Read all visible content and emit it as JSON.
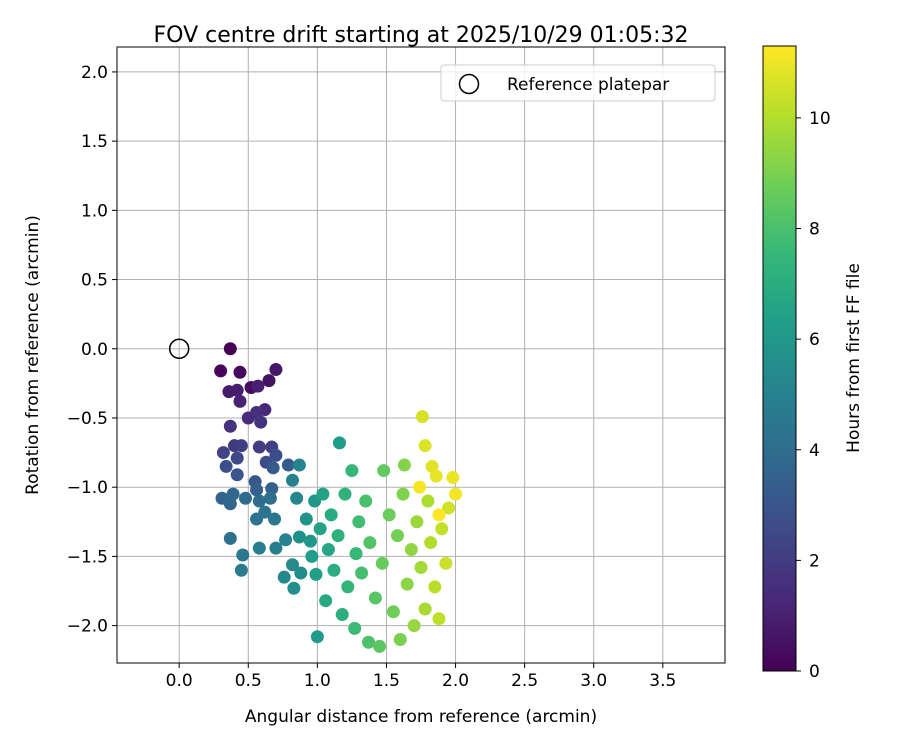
{
  "chart_data": {
    "type": "scatter",
    "title": "FOV centre drift starting at 2025/10/29 01:05:32",
    "xlabel": "Angular distance from reference (arcmin)",
    "ylabel": "Rotation from reference (arcmin)",
    "xlim": [
      -0.45,
      3.95
    ],
    "ylim": [
      -2.27,
      2.18
    ],
    "xticks": [
      0.0,
      0.5,
      1.0,
      1.5,
      2.0,
      2.5,
      3.0,
      3.5
    ],
    "xtick_labels": [
      "0.0",
      "0.5",
      "1.0",
      "1.5",
      "2.0",
      "2.5",
      "3.0",
      "3.5"
    ],
    "yticks": [
      2.0,
      1.5,
      1.0,
      0.5,
      0.0,
      -0.5,
      -1.0,
      -1.5,
      -2.0
    ],
    "ytick_labels": [
      "2.0",
      "1.5",
      "1.0",
      "0.5",
      "0.0",
      "−0.5",
      "−1.0",
      "−1.5",
      "−2.0"
    ],
    "grid": true,
    "legend": {
      "placement": "top-right",
      "entries": [
        "Reference platepar"
      ]
    },
    "reference_point": {
      "name": "Reference platepar",
      "x": 0.0,
      "y": 0.0
    },
    "colorbar": {
      "label": "Hours from first FF file",
      "range": [
        0,
        11.3
      ],
      "ticks": [
        0,
        2,
        4,
        6,
        8,
        10
      ],
      "tick_labels": [
        "0",
        "2",
        "4",
        "6",
        "8",
        "10"
      ],
      "colormap": [
        "#440154",
        "#482878",
        "#3e4989",
        "#31688e",
        "#26828e",
        "#1f9e89",
        "#35b779",
        "#6ece58",
        "#b5de2b",
        "#fde725"
      ]
    },
    "points": [
      {
        "x": 0.37,
        "y": 0.0,
        "t": 0.0
      },
      {
        "x": 0.3,
        "y": -0.16,
        "t": 0.2
      },
      {
        "x": 0.44,
        "y": -0.17,
        "t": 0.3
      },
      {
        "x": 0.52,
        "y": -0.28,
        "t": 0.4
      },
      {
        "x": 0.65,
        "y": -0.23,
        "t": 0.5
      },
      {
        "x": 0.7,
        "y": -0.15,
        "t": 0.7
      },
      {
        "x": 0.36,
        "y": -0.31,
        "t": 0.8
      },
      {
        "x": 0.42,
        "y": -0.3,
        "t": 0.9
      },
      {
        "x": 0.57,
        "y": -0.27,
        "t": 1.0
      },
      {
        "x": 0.44,
        "y": -0.38,
        "t": 1.1
      },
      {
        "x": 0.62,
        "y": -0.44,
        "t": 1.3
      },
      {
        "x": 0.5,
        "y": -0.5,
        "t": 1.4
      },
      {
        "x": 0.56,
        "y": -0.46,
        "t": 1.5
      },
      {
        "x": 0.37,
        "y": -0.56,
        "t": 1.6
      },
      {
        "x": 0.59,
        "y": -0.53,
        "t": 1.7
      },
      {
        "x": 0.4,
        "y": -0.7,
        "t": 1.9
      },
      {
        "x": 0.58,
        "y": -0.71,
        "t": 2.0
      },
      {
        "x": 0.45,
        "y": -0.7,
        "t": 2.1
      },
      {
        "x": 0.67,
        "y": -0.71,
        "t": 2.2
      },
      {
        "x": 0.32,
        "y": -0.75,
        "t": 2.3
      },
      {
        "x": 0.42,
        "y": -0.79,
        "t": 2.5
      },
      {
        "x": 0.63,
        "y": -0.82,
        "t": 2.6
      },
      {
        "x": 0.7,
        "y": -0.77,
        "t": 2.7
      },
      {
        "x": 0.34,
        "y": -0.85,
        "t": 2.8
      },
      {
        "x": 0.42,
        "y": -0.91,
        "t": 3.0
      },
      {
        "x": 0.55,
        "y": -0.96,
        "t": 3.1
      },
      {
        "x": 0.68,
        "y": -0.86,
        "t": 3.2
      },
      {
        "x": 0.79,
        "y": -0.84,
        "t": 3.3
      },
      {
        "x": 0.56,
        "y": -1.02,
        "t": 3.4
      },
      {
        "x": 0.67,
        "y": -1.01,
        "t": 3.5
      },
      {
        "x": 0.31,
        "y": -1.08,
        "t": 3.6
      },
      {
        "x": 0.37,
        "y": -1.12,
        "t": 3.7
      },
      {
        "x": 0.39,
        "y": -1.05,
        "t": 3.8
      },
      {
        "x": 0.48,
        "y": -1.08,
        "t": 3.9
      },
      {
        "x": 0.58,
        "y": -1.1,
        "t": 4.0
      },
      {
        "x": 0.66,
        "y": -1.08,
        "t": 4.1
      },
      {
        "x": 0.37,
        "y": -1.37,
        "t": 4.2
      },
      {
        "x": 0.56,
        "y": -1.23,
        "t": 4.3
      },
      {
        "x": 0.62,
        "y": -1.18,
        "t": 4.4
      },
      {
        "x": 0.69,
        "y": -1.23,
        "t": 4.5
      },
      {
        "x": 0.46,
        "y": -1.49,
        "t": 4.6
      },
      {
        "x": 0.45,
        "y": -1.6,
        "t": 4.7
      },
      {
        "x": 0.58,
        "y": -1.44,
        "t": 4.8
      },
      {
        "x": 0.7,
        "y": -1.44,
        "t": 4.9
      },
      {
        "x": 0.77,
        "y": -1.38,
        "t": 5.0
      },
      {
        "x": 0.82,
        "y": -0.95,
        "t": 5.0
      },
      {
        "x": 0.87,
        "y": -0.84,
        "t": 5.1
      },
      {
        "x": 0.85,
        "y": -1.08,
        "t": 5.2
      },
      {
        "x": 0.76,
        "y": -1.65,
        "t": 5.3
      },
      {
        "x": 0.82,
        "y": -1.56,
        "t": 5.4
      },
      {
        "x": 0.88,
        "y": -1.62,
        "t": 5.5
      },
      {
        "x": 0.83,
        "y": -1.73,
        "t": 5.6
      },
      {
        "x": 0.87,
        "y": -1.36,
        "t": 5.7
      },
      {
        "x": 0.92,
        "y": -1.23,
        "t": 5.8
      },
      {
        "x": 0.95,
        "y": -1.39,
        "t": 5.9
      },
      {
        "x": 0.98,
        "y": -1.1,
        "t": 6.0
      },
      {
        "x": 1.0,
        "y": -2.08,
        "t": 6.1
      },
      {
        "x": 1.16,
        "y": -0.68,
        "t": 6.2
      },
      {
        "x": 0.96,
        "y": -1.5,
        "t": 6.3
      },
      {
        "x": 0.99,
        "y": -1.63,
        "t": 6.4
      },
      {
        "x": 1.04,
        "y": -1.05,
        "t": 6.5
      },
      {
        "x": 1.02,
        "y": -1.3,
        "t": 6.6
      },
      {
        "x": 1.08,
        "y": -1.45,
        "t": 6.7
      },
      {
        "x": 1.06,
        "y": -1.82,
        "t": 6.8
      },
      {
        "x": 1.1,
        "y": -1.2,
        "t": 6.9
      },
      {
        "x": 1.12,
        "y": -1.6,
        "t": 7.0
      },
      {
        "x": 1.18,
        "y": -1.92,
        "t": 7.1
      },
      {
        "x": 1.15,
        "y": -1.35,
        "t": 7.2
      },
      {
        "x": 1.2,
        "y": -1.05,
        "t": 7.3
      },
      {
        "x": 1.22,
        "y": -1.72,
        "t": 7.4
      },
      {
        "x": 1.25,
        "y": -0.88,
        "t": 7.5
      },
      {
        "x": 1.28,
        "y": -1.48,
        "t": 7.6
      },
      {
        "x": 1.27,
        "y": -2.02,
        "t": 7.7
      },
      {
        "x": 1.3,
        "y": -1.25,
        "t": 7.8
      },
      {
        "x": 1.32,
        "y": -1.62,
        "t": 7.9
      },
      {
        "x": 1.35,
        "y": -1.1,
        "t": 8.0
      },
      {
        "x": 1.37,
        "y": -2.12,
        "t": 8.1
      },
      {
        "x": 1.38,
        "y": -1.4,
        "t": 8.2
      },
      {
        "x": 1.42,
        "y": -1.8,
        "t": 8.3
      },
      {
        "x": 1.45,
        "y": -2.15,
        "t": 8.4
      },
      {
        "x": 1.48,
        "y": -0.88,
        "t": 8.5
      },
      {
        "x": 1.47,
        "y": -1.55,
        "t": 8.6
      },
      {
        "x": 1.52,
        "y": -1.2,
        "t": 8.7
      },
      {
        "x": 1.55,
        "y": -1.9,
        "t": 8.8
      },
      {
        "x": 1.58,
        "y": -1.35,
        "t": 8.9
      },
      {
        "x": 1.6,
        "y": -2.1,
        "t": 9.0
      },
      {
        "x": 1.62,
        "y": -1.05,
        "t": 9.1
      },
      {
        "x": 1.63,
        "y": -0.84,
        "t": 9.2
      },
      {
        "x": 1.65,
        "y": -1.7,
        "t": 9.3
      },
      {
        "x": 1.68,
        "y": -1.45,
        "t": 9.4
      },
      {
        "x": 1.7,
        "y": -2.0,
        "t": 9.5
      },
      {
        "x": 1.72,
        "y": -1.25,
        "t": 9.6
      },
      {
        "x": 1.75,
        "y": -1.58,
        "t": 9.7
      },
      {
        "x": 1.78,
        "y": -1.88,
        "t": 9.8
      },
      {
        "x": 1.8,
        "y": -1.1,
        "t": 9.9
      },
      {
        "x": 1.82,
        "y": -1.4,
        "t": 10.0
      },
      {
        "x": 1.85,
        "y": -1.72,
        "t": 10.1
      },
      {
        "x": 1.88,
        "y": -1.95,
        "t": 10.2
      },
      {
        "x": 1.9,
        "y": -1.3,
        "t": 10.3
      },
      {
        "x": 1.93,
        "y": -1.55,
        "t": 10.4
      },
      {
        "x": 1.95,
        "y": -1.15,
        "t": 10.5
      },
      {
        "x": 1.76,
        "y": -0.49,
        "t": 10.6
      },
      {
        "x": 1.78,
        "y": -0.7,
        "t": 10.7
      },
      {
        "x": 1.83,
        "y": -0.85,
        "t": 10.8
      },
      {
        "x": 1.86,
        "y": -0.92,
        "t": 10.9
      },
      {
        "x": 1.98,
        "y": -0.93,
        "t": 11.0
      },
      {
        "x": 2.0,
        "y": -1.05,
        "t": 11.1
      },
      {
        "x": 1.74,
        "y": -1.0,
        "t": 11.2
      },
      {
        "x": 1.88,
        "y": -1.2,
        "t": 11.3
      }
    ]
  }
}
